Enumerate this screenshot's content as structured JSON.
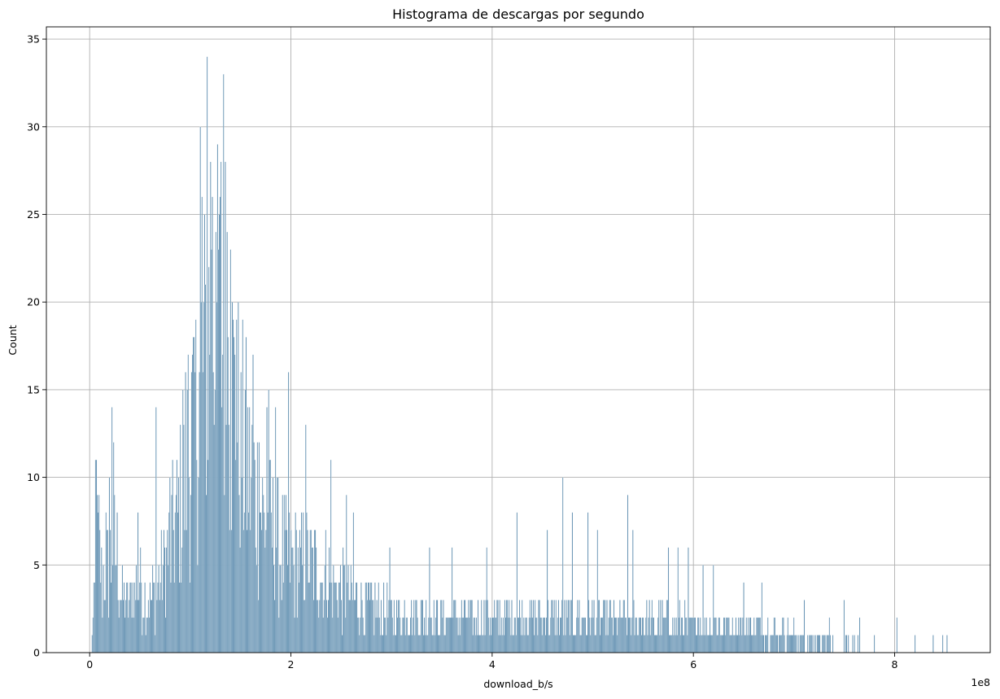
{
  "chart_data": {
    "type": "bar",
    "title": "Histograma de descargas por segundo",
    "xlabel": "download_b/s",
    "ylabel": "Count",
    "x_offset_label": "1e8",
    "xlim": [
      -0.43,
      8.95
    ],
    "ylim": [
      0,
      35.7
    ],
    "xticks": [
      0,
      2,
      4,
      6,
      8
    ],
    "yticks": [
      0,
      5,
      10,
      15,
      20,
      25,
      30,
      35
    ],
    "grid": true,
    "bar_color": "#4a7fa5",
    "bar_edge_color": "#ffffff",
    "bin_width": 0.0086,
    "shape_points": [
      [
        0.02,
        0
      ],
      [
        0.05,
        3
      ],
      [
        0.08,
        7
      ],
      [
        0.12,
        4
      ],
      [
        0.2,
        5
      ],
      [
        0.26,
        6
      ],
      [
        0.32,
        3
      ],
      [
        0.4,
        3
      ],
      [
        0.5,
        4
      ],
      [
        0.6,
        3
      ],
      [
        0.7,
        4
      ],
      [
        0.8,
        6
      ],
      [
        0.9,
        8
      ],
      [
        1.0,
        12
      ],
      [
        1.1,
        16
      ],
      [
        1.18,
        18
      ],
      [
        1.25,
        19
      ],
      [
        1.32,
        18
      ],
      [
        1.4,
        15
      ],
      [
        1.5,
        12
      ],
      [
        1.6,
        10
      ],
      [
        1.7,
        8
      ],
      [
        1.8,
        7
      ],
      [
        1.9,
        6
      ],
      [
        2.0,
        5
      ],
      [
        2.2,
        5
      ],
      [
        2.4,
        4
      ],
      [
        2.6,
        3
      ],
      [
        2.8,
        2.6
      ],
      [
        3.0,
        2.3
      ],
      [
        3.5,
        2.0
      ],
      [
        4.0,
        1.9
      ],
      [
        4.5,
        2.0
      ],
      [
        5.0,
        2.0
      ],
      [
        5.5,
        1.8
      ],
      [
        6.0,
        1.6
      ],
      [
        6.5,
        1.4
      ],
      [
        7.0,
        1.0
      ],
      [
        7.5,
        0.6
      ],
      [
        7.8,
        0.3
      ],
      [
        8.0,
        0.15
      ],
      [
        8.6,
        0.05
      ]
    ],
    "spikes": [
      [
        0.06,
        11
      ],
      [
        0.07,
        11
      ],
      [
        0.08,
        9
      ],
      [
        0.16,
        8
      ],
      [
        0.2,
        10
      ],
      [
        0.22,
        14
      ],
      [
        0.24,
        12
      ],
      [
        0.48,
        8
      ],
      [
        0.66,
        14
      ],
      [
        0.8,
        10
      ],
      [
        0.93,
        15
      ],
      [
        0.95,
        16
      ],
      [
        0.98,
        17
      ],
      [
        1.02,
        17
      ],
      [
        1.04,
        18
      ],
      [
        1.06,
        19
      ],
      [
        1.1,
        30
      ],
      [
        1.12,
        26
      ],
      [
        1.14,
        25
      ],
      [
        1.17,
        34
      ],
      [
        1.2,
        28
      ],
      [
        1.22,
        26
      ],
      [
        1.25,
        24
      ],
      [
        1.27,
        29
      ],
      [
        1.29,
        25
      ],
      [
        1.31,
        28
      ],
      [
        1.33,
        33
      ],
      [
        1.35,
        28
      ],
      [
        1.37,
        24
      ],
      [
        1.4,
        23
      ],
      [
        1.42,
        20
      ],
      [
        1.46,
        19
      ],
      [
        1.5,
        16
      ],
      [
        1.55,
        15
      ],
      [
        1.62,
        17
      ],
      [
        1.68,
        12
      ],
      [
        1.76,
        14
      ],
      [
        1.78,
        15
      ],
      [
        1.85,
        14
      ],
      [
        1.98,
        16
      ],
      [
        2.15,
        13
      ],
      [
        2.4,
        11
      ],
      [
        2.55,
        9
      ],
      [
        2.62,
        8
      ],
      [
        2.98,
        6
      ],
      [
        3.38,
        6
      ],
      [
        3.6,
        6
      ],
      [
        3.95,
        6
      ],
      [
        4.25,
        8
      ],
      [
        4.55,
        7
      ],
      [
        4.7,
        10
      ],
      [
        4.8,
        8
      ],
      [
        4.95,
        8
      ],
      [
        5.05,
        7
      ],
      [
        5.35,
        9
      ],
      [
        5.4,
        7
      ],
      [
        5.75,
        6
      ],
      [
        5.85,
        6
      ],
      [
        5.95,
        6
      ],
      [
        6.1,
        5
      ],
      [
        6.2,
        5
      ],
      [
        6.5,
        4
      ],
      [
        6.68,
        4
      ],
      [
        7.1,
        3
      ],
      [
        7.35,
        2
      ],
      [
        7.5,
        3
      ],
      [
        7.65,
        2
      ],
      [
        7.8,
        1
      ],
      [
        8.02,
        2
      ],
      [
        8.2,
        1
      ],
      [
        8.38,
        1
      ],
      [
        8.48,
        1
      ],
      [
        8.52,
        1
      ]
    ]
  }
}
